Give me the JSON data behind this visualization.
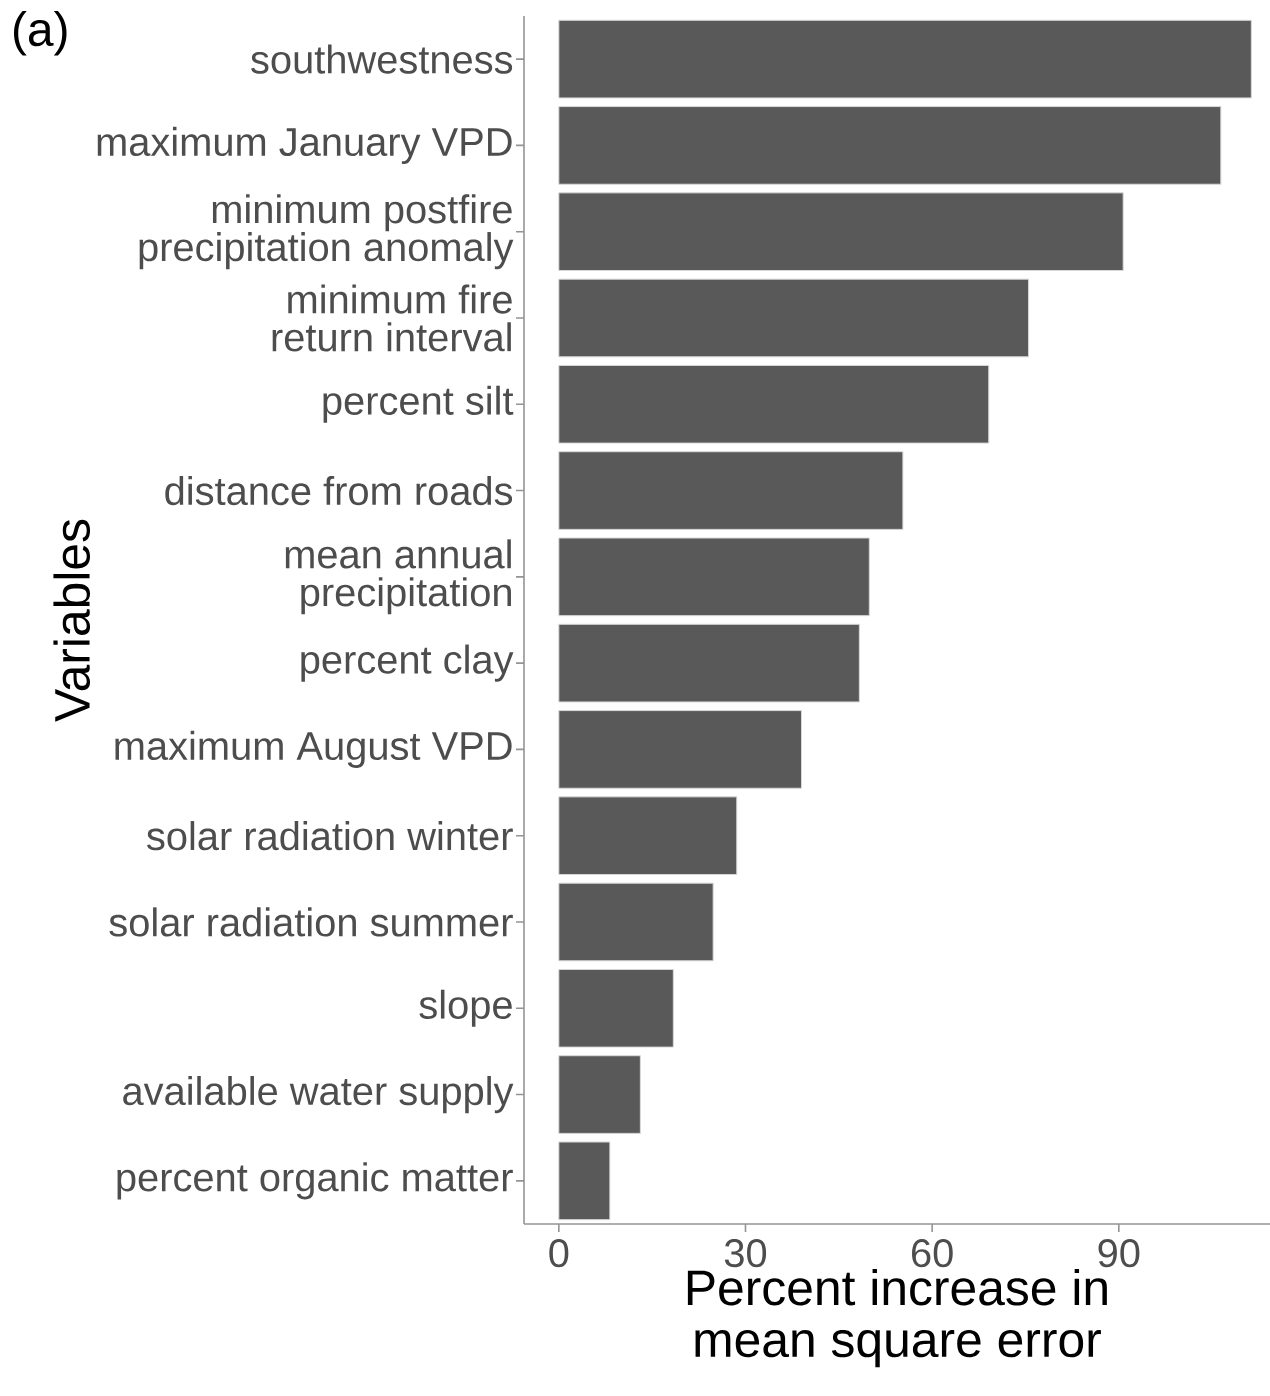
{
  "chart_data": {
    "type": "bar",
    "orientation": "horizontal",
    "categories": [
      "southwestness",
      "maximum January VPD",
      "minimum postfire\nprecipitation anomaly",
      "minimum fire\nreturn interval",
      "percent silt",
      "distance from roads",
      "mean annual\nprecipitation",
      "percent clay",
      "maximum August VPD",
      "solar radiation winter",
      "solar radiation summer",
      "slope",
      "available water supply",
      "percent organic matter"
    ],
    "values": [
      111.3,
      106.4,
      90.7,
      75.5,
      69.1,
      55.3,
      49.9,
      48.3,
      39.0,
      28.6,
      24.8,
      18.4,
      13.1,
      8.2
    ],
    "color": "#595959",
    "xlim": [
      -5.6,
      114.3
    ],
    "xticks": [
      0,
      30,
      60,
      90
    ],
    "xlabel": "Percent increase in\nmean square error",
    "ylabel": "Variables",
    "annotations": [
      "(a)"
    ]
  }
}
